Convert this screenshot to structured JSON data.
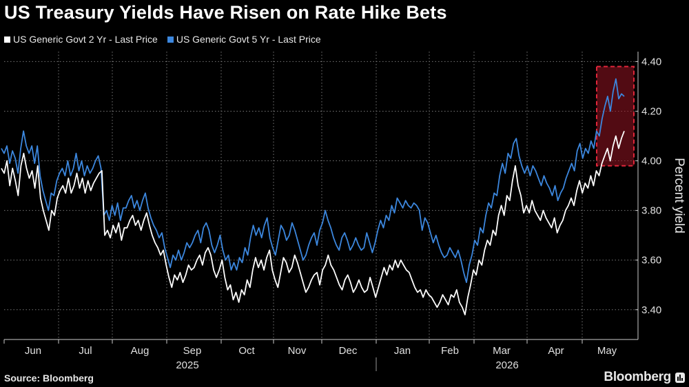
{
  "header": {
    "title": "US Treasury Yields Have Risen on Rate Hike Bets"
  },
  "footer": {
    "source": "Source: Bloomberg",
    "brand": "Bloomberg"
  },
  "colors": {
    "background": "#000000",
    "series_2yr": "#ffffff",
    "series_5yr": "#3c87de",
    "highlight": "#e0263a"
  },
  "chart_data": {
    "type": "line",
    "ylabel": "Percent yield",
    "ylim": [
      3.28,
      4.44
    ],
    "yticks": [
      3.4,
      3.6,
      3.8,
      4.0,
      4.2,
      4.4
    ],
    "ytick_labels": [
      "3.40",
      "3.60",
      "3.80",
      "4.00",
      "4.20",
      "4.40"
    ],
    "y_axis_position": "right",
    "grid": "dotted",
    "legend_position": "top-left",
    "month_labels": [
      "Jun",
      "Jul",
      "Aug",
      "Sep",
      "Oct",
      "Nov",
      "Dec",
      "Jan",
      "Feb",
      "Mar",
      "Apr",
      "May"
    ],
    "year_labels": [
      "2025",
      "2026"
    ],
    "highlight_box": {
      "label": "",
      "y_range": [
        3.98,
        4.38
      ],
      "x_range": [
        "May 10",
        "May 28"
      ]
    },
    "series": [
      {
        "name": "US Generic Govt 2 Yr - Last Price",
        "color": "#ffffff",
        "values": [
          3.97,
          3.95,
          4.0,
          3.9,
          3.97,
          3.92,
          3.86,
          3.98,
          4.03,
          3.97,
          3.93,
          3.96,
          3.89,
          3.98,
          3.85,
          3.8,
          3.76,
          3.72,
          3.8,
          3.78,
          3.85,
          3.88,
          3.9,
          3.87,
          3.93,
          3.87,
          3.9,
          3.95,
          3.89,
          3.93,
          3.87,
          3.92,
          3.88,
          3.91,
          3.93,
          3.95,
          3.96,
          3.7,
          3.72,
          3.69,
          3.74,
          3.71,
          3.75,
          3.68,
          3.73,
          3.73,
          3.76,
          3.78,
          3.74,
          3.76,
          3.72,
          3.76,
          3.79,
          3.74,
          3.7,
          3.67,
          3.65,
          3.62,
          3.64,
          3.58,
          3.53,
          3.49,
          3.54,
          3.52,
          3.55,
          3.51,
          3.54,
          3.58,
          3.56,
          3.57,
          3.6,
          3.62,
          3.58,
          3.63,
          3.65,
          3.62,
          3.56,
          3.53,
          3.56,
          3.6,
          3.53,
          3.48,
          3.5,
          3.44,
          3.47,
          3.43,
          3.48,
          3.46,
          3.52,
          3.49,
          3.56,
          3.61,
          3.57,
          3.6,
          3.56,
          3.61,
          3.64,
          3.56,
          3.52,
          3.49,
          3.55,
          3.61,
          3.59,
          3.55,
          3.57,
          3.62,
          3.59,
          3.55,
          3.51,
          3.47,
          3.49,
          3.52,
          3.54,
          3.55,
          3.5,
          3.56,
          3.58,
          3.62,
          3.58,
          3.56,
          3.53,
          3.5,
          3.48,
          3.52,
          3.54,
          3.51,
          3.47,
          3.49,
          3.52,
          3.49,
          3.47,
          3.48,
          3.53,
          3.49,
          3.45,
          3.49,
          3.53,
          3.57,
          3.54,
          3.58,
          3.56,
          3.6,
          3.57,
          3.6,
          3.58,
          3.56,
          3.55,
          3.52,
          3.49,
          3.47,
          3.48,
          3.45,
          3.48,
          3.46,
          3.45,
          3.43,
          3.41,
          3.43,
          3.46,
          3.44,
          3.42,
          3.46,
          3.45,
          3.48,
          3.43,
          3.41,
          3.38,
          3.45,
          3.5,
          3.56,
          3.54,
          3.6,
          3.58,
          3.64,
          3.68,
          3.66,
          3.72,
          3.7,
          3.78,
          3.82,
          3.78,
          3.86,
          3.84,
          3.92,
          3.98,
          3.9,
          3.86,
          3.79,
          3.82,
          3.79,
          3.84,
          3.8,
          3.78,
          3.76,
          3.8,
          3.77,
          3.75,
          3.73,
          3.77,
          3.71,
          3.74,
          3.76,
          3.8,
          3.82,
          3.85,
          3.82,
          3.88,
          3.92,
          3.87,
          3.91,
          3.89,
          3.94,
          3.9,
          3.96,
          3.94,
          3.99,
          4.02,
          4.05,
          4.0,
          4.06,
          4.1,
          4.05,
          4.09,
          4.12
        ]
      },
      {
        "name": "US Generic Govt 5 Yr - Last Price",
        "color": "#3c87de",
        "values": [
          4.05,
          4.03,
          4.06,
          3.99,
          4.04,
          4.01,
          3.95,
          4.05,
          4.12,
          4.06,
          4.03,
          4.06,
          3.99,
          4.06,
          3.94,
          3.88,
          3.84,
          3.8,
          3.87,
          3.86,
          3.92,
          3.95,
          3.97,
          3.94,
          4.0,
          3.94,
          3.97,
          4.03,
          3.96,
          4.0,
          3.94,
          3.98,
          3.95,
          3.97,
          4.0,
          4.02,
          3.97,
          3.78,
          3.8,
          3.76,
          3.82,
          3.78,
          3.83,
          3.76,
          3.81,
          3.81,
          3.84,
          3.86,
          3.81,
          3.84,
          3.8,
          3.84,
          3.87,
          3.81,
          3.77,
          3.74,
          3.72,
          3.69,
          3.71,
          3.65,
          3.61,
          3.57,
          3.62,
          3.6,
          3.64,
          3.6,
          3.63,
          3.67,
          3.65,
          3.67,
          3.7,
          3.72,
          3.67,
          3.73,
          3.75,
          3.72,
          3.66,
          3.63,
          3.66,
          3.7,
          3.64,
          3.6,
          3.62,
          3.56,
          3.59,
          3.56,
          3.61,
          3.59,
          3.65,
          3.62,
          3.69,
          3.74,
          3.7,
          3.73,
          3.69,
          3.74,
          3.77,
          3.69,
          3.65,
          3.62,
          3.68,
          3.74,
          3.72,
          3.68,
          3.7,
          3.75,
          3.72,
          3.68,
          3.64,
          3.6,
          3.62,
          3.66,
          3.69,
          3.71,
          3.66,
          3.72,
          3.75,
          3.8,
          3.76,
          3.73,
          3.69,
          3.66,
          3.64,
          3.69,
          3.71,
          3.68,
          3.64,
          3.66,
          3.69,
          3.66,
          3.64,
          3.65,
          3.71,
          3.67,
          3.63,
          3.67,
          3.72,
          3.76,
          3.73,
          3.78,
          3.76,
          3.82,
          3.79,
          3.85,
          3.83,
          3.81,
          3.84,
          3.82,
          3.81,
          3.83,
          3.82,
          3.8,
          3.72,
          3.77,
          3.75,
          3.71,
          3.67,
          3.7,
          3.66,
          3.63,
          3.61,
          3.62,
          3.65,
          3.63,
          3.61,
          3.64,
          3.6,
          3.55,
          3.51,
          3.58,
          3.62,
          3.68,
          3.66,
          3.73,
          3.71,
          3.78,
          3.83,
          3.81,
          3.87,
          3.86,
          3.94,
          3.99,
          3.95,
          4.03,
          4.01,
          4.07,
          4.09,
          4.02,
          3.98,
          3.95,
          3.98,
          3.94,
          3.98,
          3.96,
          3.93,
          3.9,
          3.94,
          3.91,
          3.89,
          3.86,
          3.9,
          3.84,
          3.87,
          3.89,
          3.93,
          3.96,
          3.99,
          3.96,
          4.04,
          4.07,
          4.01,
          4.05,
          4.03,
          4.08,
          4.05,
          4.12,
          4.1,
          4.17,
          4.22,
          4.26,
          4.2,
          4.28,
          4.33,
          4.25,
          4.27,
          4.26
        ]
      }
    ]
  }
}
